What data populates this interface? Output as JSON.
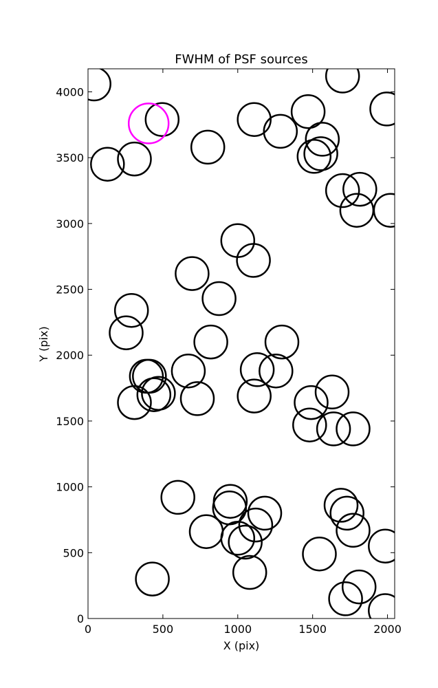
{
  "chart_data": {
    "type": "scatter",
    "title": "FWHM of PSF sources",
    "xlabel": "X (pix)",
    "ylabel": "Y (pix)",
    "xlim": [
      0,
      2048
    ],
    "ylim": [
      0,
      4175
    ],
    "xticks": [
      0,
      500,
      1000,
      1500,
      2000
    ],
    "yticks": [
      0,
      500,
      1000,
      1500,
      2000,
      2500,
      3000,
      3500,
      4000
    ],
    "grid": false,
    "colors": {
      "sources": "#000000",
      "highlight": "#ff00ff"
    },
    "series": [
      {
        "marker": "circle",
        "color": "#000000",
        "points": [
          [
            40,
            4060
          ],
          [
            130,
            3450
          ],
          [
            310,
            3490
          ],
          [
            495,
            3790
          ],
          [
            800,
            3580
          ],
          [
            1110,
            3790
          ],
          [
            1285,
            3700
          ],
          [
            1470,
            3850
          ],
          [
            1700,
            4120
          ],
          [
            1995,
            3870
          ],
          [
            1565,
            3640
          ],
          [
            1510,
            3510
          ],
          [
            1555,
            3530
          ],
          [
            1700,
            3250
          ],
          [
            1815,
            3260
          ],
          [
            1795,
            3100
          ],
          [
            2020,
            3100
          ],
          [
            1000,
            2870
          ],
          [
            1105,
            2720
          ],
          [
            695,
            2620
          ],
          [
            875,
            2430
          ],
          [
            290,
            2340
          ],
          [
            255,
            2170
          ],
          [
            820,
            2100
          ],
          [
            1295,
            2100
          ],
          [
            390,
            1840
          ],
          [
            410,
            1840
          ],
          [
            670,
            1880
          ],
          [
            1130,
            1890
          ],
          [
            1255,
            1880
          ],
          [
            1630,
            1720
          ],
          [
            1490,
            1640
          ],
          [
            1110,
            1690
          ],
          [
            730,
            1670
          ],
          [
            470,
            1710
          ],
          [
            440,
            1700
          ],
          [
            310,
            1640
          ],
          [
            1480,
            1470
          ],
          [
            1640,
            1440
          ],
          [
            1770,
            1440
          ],
          [
            600,
            920
          ],
          [
            950,
            890
          ],
          [
            945,
            840
          ],
          [
            1180,
            800
          ],
          [
            1690,
            860
          ],
          [
            1730,
            800
          ],
          [
            1120,
            710
          ],
          [
            790,
            660
          ],
          [
            1000,
            610
          ],
          [
            1050,
            580
          ],
          [
            1770,
            670
          ],
          [
            1985,
            550
          ],
          [
            1545,
            490
          ],
          [
            1080,
            350
          ],
          [
            430,
            300
          ],
          [
            1810,
            240
          ],
          [
            1720,
            150
          ],
          [
            1985,
            60
          ]
        ]
      },
      {
        "marker": "circle",
        "color": "#ff00ff",
        "points": [
          [
            405,
            3760
          ]
        ]
      }
    ]
  }
}
